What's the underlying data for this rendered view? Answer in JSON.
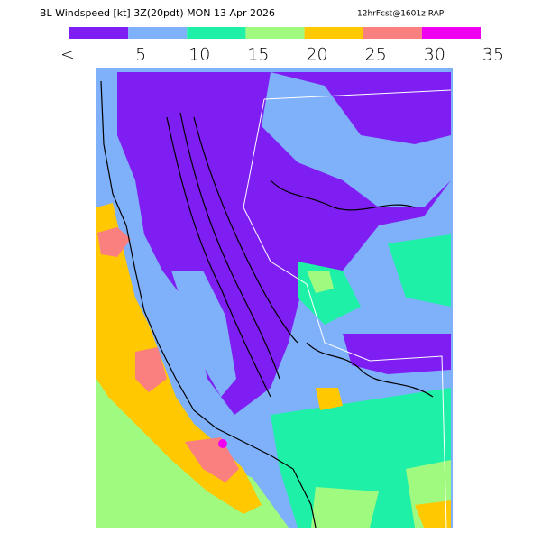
{
  "title": "BL Windspeed [kt] 3Z(20pdt) MON 13 Apr 2026",
  "forecast": "12hrFcst@1601z RAP",
  "legend": {
    "colors": [
      "#7f1ef2",
      "#7fb0fa",
      "#1ef0a8",
      "#a0fa80",
      "#ffc800",
      "#fa8080",
      "#f000f0"
    ],
    "labels": [
      "<",
      5,
      10,
      15,
      20,
      25,
      30,
      35
    ]
  }
}
